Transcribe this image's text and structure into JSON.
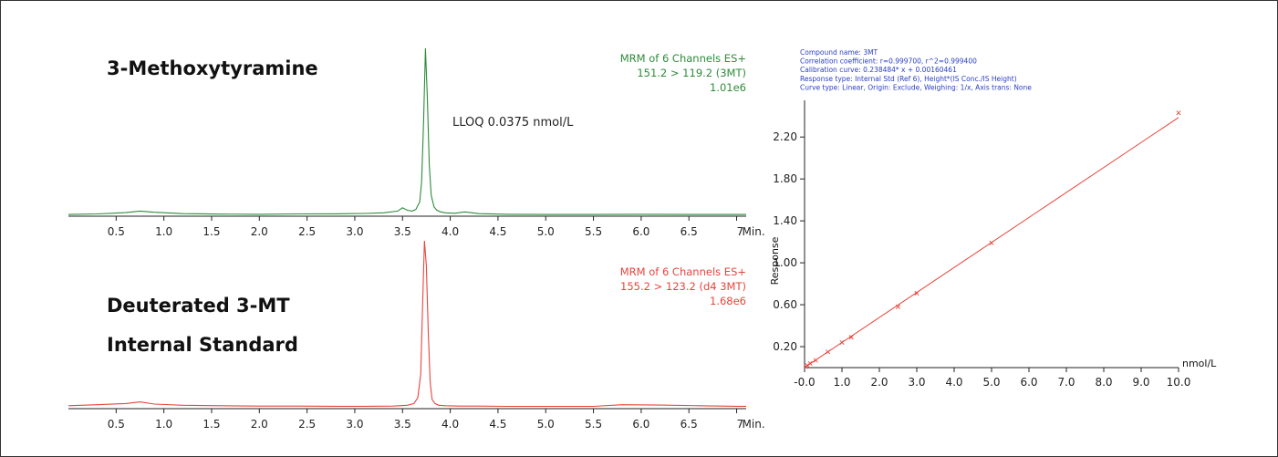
{
  "chart_data": [
    {
      "type": "line",
      "title": "3-Methoxytyramine",
      "annotation": "LLOQ 0.0375 nmol/L",
      "channel_info": [
        "MRM of 6 Channels ES+",
        "151.2 > 119.2 (3MT)",
        "1.01e6"
      ],
      "x_ticks": [
        "0.5",
        "1.0",
        "1.5",
        "2.0",
        "2.5",
        "3.0",
        "3.5",
        "4.0",
        "4.5",
        "5.0",
        "5.5",
        "6.0",
        "6.5",
        "7"
      ],
      "x_unit": "Min.",
      "xlim": [
        0.0,
        7.1
      ],
      "ylim": [
        0,
        100
      ],
      "series": [
        {
          "color": "#2e8b3a",
          "x": [
            0.0,
            0.3,
            0.6,
            0.75,
            0.9,
            1.2,
            1.6,
            2.0,
            2.4,
            2.8,
            3.1,
            3.3,
            3.45,
            3.5,
            3.55,
            3.6,
            3.64,
            3.68,
            3.7,
            3.72,
            3.74,
            3.76,
            3.78,
            3.8,
            3.83,
            3.86,
            3.9,
            3.95,
            4.05,
            4.15,
            4.3,
            4.6,
            5.0,
            5.5,
            6.0,
            6.5,
            7.0,
            7.1
          ],
          "y": [
            0.5,
            0.8,
            1.6,
            2.5,
            1.8,
            1.0,
            0.7,
            0.6,
            0.8,
            0.9,
            1.1,
            1.5,
            2.5,
            4.5,
            3.0,
            2.5,
            3.5,
            8,
            20,
            55,
            100,
            70,
            30,
            12,
            5,
            3,
            2,
            1.5,
            1.2,
            2.0,
            1.0,
            0.6,
            0.5,
            0.5,
            0.6,
            0.5,
            0.5,
            0.5
          ]
        }
      ]
    },
    {
      "type": "line",
      "title_lines": [
        "Deuterated 3-MT",
        "Internal Standard"
      ],
      "channel_info": [
        "MRM of 6 Channels ES+",
        "155.2 > 123.2 (d4 3MT)",
        "1.68e6"
      ],
      "x_ticks": [
        "0.5",
        "1.0",
        "1.5",
        "2.0",
        "2.5",
        "3.0",
        "3.5",
        "4.0",
        "4.5",
        "5.0",
        "5.5",
        "6.0",
        "6.5",
        "7"
      ],
      "x_unit": "Min.",
      "xlim": [
        0.0,
        7.1
      ],
      "ylim": [
        0,
        100
      ],
      "series": [
        {
          "color": "#e8453c",
          "x": [
            0.0,
            0.3,
            0.6,
            0.75,
            0.9,
            1.2,
            1.6,
            2.0,
            2.4,
            2.8,
            3.1,
            3.4,
            3.55,
            3.62,
            3.66,
            3.69,
            3.71,
            3.73,
            3.75,
            3.77,
            3.79,
            3.81,
            3.84,
            3.88,
            3.95,
            4.1,
            4.3,
            4.6,
            5.0,
            5.5,
            5.8,
            6.2,
            6.6,
            7.0,
            7.1
          ],
          "y": [
            1.2,
            1.8,
            2.5,
            3.5,
            2.2,
            1.5,
            1.2,
            1.0,
            1.0,
            0.9,
            0.9,
            1.0,
            1.5,
            2.5,
            6,
            20,
            60,
            100,
            85,
            45,
            15,
            5,
            2.5,
            1.5,
            1.2,
            1.0,
            1.0,
            0.8,
            0.8,
            0.8,
            1.8,
            1.6,
            1.2,
            0.9,
            0.9
          ]
        }
      ]
    },
    {
      "type": "scatter",
      "info_lines": [
        "Compound name: 3MT",
        "Correlation coefficient: r=0.999700, r^2=0.999400",
        "Calibration curve: 0.238484* x + 0.00160461",
        "Response type: Internal Std (Ref 6), Height*(IS Conc./IS Height)",
        "Curve type: Linear, Origin: Exclude, Weighing: 1/x, Axis trans: None"
      ],
      "xlabel": "nmol/L",
      "ylabel": "Response",
      "x_ticks": [
        "-0.0",
        "1.0",
        "2.0",
        "3.0",
        "4.0",
        "5.0",
        "6.0",
        "7.0",
        "8.0",
        "9.0",
        "10.0"
      ],
      "y_ticks": [
        "0.20",
        "0.60",
        "1.00",
        "1.40",
        "1.80",
        "2.20"
      ],
      "xlim": [
        0,
        10
      ],
      "ylim": [
        0,
        2.55
      ],
      "line": {
        "slope": 0.238484,
        "intercept": 0.00160461,
        "x_range": [
          0,
          10
        ]
      },
      "points": {
        "x": [
          0.0375,
          0.075,
          0.15,
          0.3,
          0.625,
          1.0,
          1.25,
          2.5,
          3.0,
          5.0,
          10.0
        ],
        "y": [
          0.01,
          0.02,
          0.04,
          0.07,
          0.15,
          0.24,
          0.29,
          0.58,
          0.71,
          1.19,
          2.43
        ]
      },
      "color": "#e8453c"
    }
  ]
}
